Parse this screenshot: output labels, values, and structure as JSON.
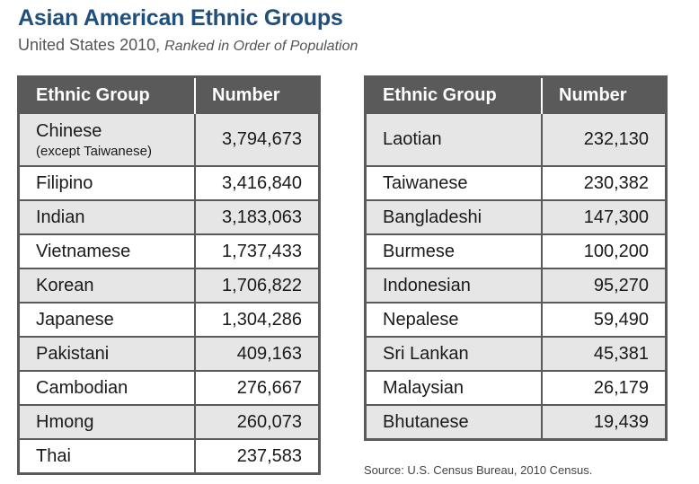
{
  "title": "Asian American Ethnic Groups",
  "subtitle": {
    "main": "United States 2010,",
    "italic": "Ranked in Order of Population"
  },
  "columns": {
    "group": "Ethnic Group",
    "number": "Number"
  },
  "left_rows": [
    {
      "group": "Chinese",
      "note": "(except Taiwanese)",
      "number": "3,794,673"
    },
    {
      "group": "Filipino",
      "number": "3,416,840"
    },
    {
      "group": "Indian",
      "number": "3,183,063"
    },
    {
      "group": "Vietnamese",
      "number": "1,737,433"
    },
    {
      "group": "Korean",
      "number": "1,706,822"
    },
    {
      "group": "Japanese",
      "number": "1,304,286"
    },
    {
      "group": "Pakistani",
      "number": "409,163"
    },
    {
      "group": "Cambodian",
      "number": "276,667"
    },
    {
      "group": "Hmong",
      "number": "260,073"
    },
    {
      "group": "Thai",
      "number": "237,583"
    }
  ],
  "right_rows": [
    {
      "group": "Laotian",
      "number": "232,130"
    },
    {
      "group": "Taiwanese",
      "number": "230,382"
    },
    {
      "group": "Bangladeshi",
      "number": "147,300"
    },
    {
      "group": "Burmese",
      "number": "100,200"
    },
    {
      "group": "Indonesian",
      "number": "95,270"
    },
    {
      "group": "Nepalese",
      "number": "59,490"
    },
    {
      "group": "Sri Lankan",
      "number": "45,381"
    },
    {
      "group": "Malaysian",
      "number": "26,179"
    },
    {
      "group": "Bhutanese",
      "number": "19,439"
    }
  ],
  "source": "Source: U.S. Census Bureau, 2010 Census.",
  "colors": {
    "title": "#1f4f7a",
    "header_bg": "#5a5a5a",
    "shaded_row": "#e6e6e6"
  }
}
